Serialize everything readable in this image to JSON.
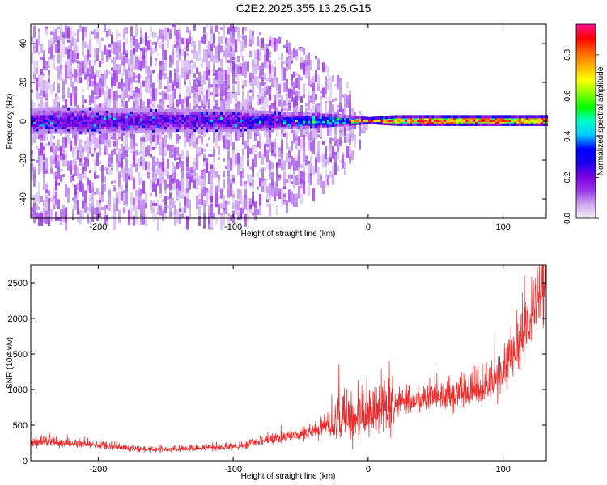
{
  "chart_data": [
    {
      "type": "heatmap",
      "title": "C2E2.2025.355.13.25.G15",
      "xlabel": "Height of straight line (km)",
      "ylabel": "Frequency (Hz)",
      "xlim": [
        -250,
        132
      ],
      "ylim": [
        -50,
        50
      ],
      "xticks": [
        -200,
        -100,
        0,
        100
      ],
      "yticks": [
        -40,
        -20,
        0,
        20,
        40
      ],
      "colorbar": {
        "label": "Normalized spectral amplitude",
        "range": [
          0,
          0.95
        ],
        "ticks": [
          0.0,
          0.2,
          0.4,
          0.6,
          0.8
        ],
        "colormap": [
          "#f2f0fa",
          "#cca8ee",
          "#9a35e8",
          "#7a00e0",
          "#1800f0",
          "#0000ff",
          "#00c8ff",
          "#00ffcc",
          "#00ff00",
          "#88ff00",
          "#ffff00",
          "#ffb000",
          "#ff6000",
          "#ff0000",
          "#ff1090"
        ]
      },
      "band": {
        "x": [
          -250,
          -200,
          -150,
          -100,
          -70,
          -40,
          -15,
          0,
          20,
          50,
          100,
          132
        ],
        "core_halfwidth_hz": [
          6,
          6,
          5,
          5,
          4,
          3,
          2,
          1,
          2,
          2,
          2,
          2
        ],
        "peak_amplitude": [
          0.25,
          0.25,
          0.25,
          0.28,
          0.3,
          0.45,
          0.55,
          0.85,
          0.85,
          0.9,
          0.9,
          0.9
        ],
        "scatter_halfwidth_hz": [
          50,
          50,
          50,
          50,
          45,
          35,
          20,
          0,
          0,
          0,
          0,
          0
        ],
        "line_frequency_hz": 0
      }
    },
    {
      "type": "line",
      "title": "",
      "xlabel": "Height of straight line (km)",
      "ylabel": "SNR (10 * v/v)",
      "xlim": [
        -250,
        132
      ],
      "ylim": [
        0,
        2750
      ],
      "xticks": [
        -200,
        -100,
        0,
        100
      ],
      "yticks": [
        0,
        500,
        1000,
        1500,
        2000,
        2500
      ],
      "color": "#ee2a2a",
      "series": [
        {
          "x": [
            -250,
            -240,
            -220,
            -200,
            -180,
            -160,
            -140,
            -120,
            -100,
            -90,
            -80,
            -70,
            -60,
            -50,
            -40,
            -30,
            -20,
            -10,
            0,
            10,
            20,
            30,
            40,
            50,
            60,
            70,
            80,
            85,
            90,
            95,
            100,
            105,
            110,
            115,
            120,
            125,
            130
          ],
          "y": [
            250,
            270,
            240,
            220,
            180,
            150,
            160,
            180,
            200,
            220,
            270,
            300,
            340,
            380,
            420,
            500,
            580,
            560,
            620,
            700,
            780,
            820,
            860,
            880,
            900,
            930,
            980,
            1000,
            1060,
            1150,
            1250,
            1380,
            1550,
            1750,
            2000,
            2250,
            2520
          ]
        }
      ]
    }
  ]
}
